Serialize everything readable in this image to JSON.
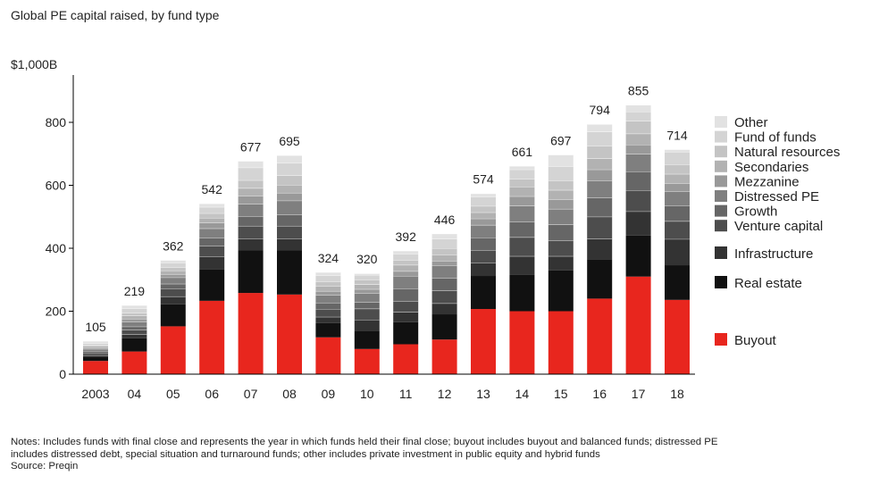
{
  "title": "Global PE capital raised, by fund type",
  "y_top_label": "$1,000B",
  "notes": [
    "Notes: Includes funds with final close and represents the year in which funds held their final close; buyout includes buyout and balanced funds; distressed PE",
    "includes distressed debt, special situation and turnaround funds; other includes private investment in public equity and hybrid funds",
    "Source: Preqin"
  ],
  "chart_data": {
    "type": "bar",
    "stacked": true,
    "title": "Global PE capital raised, by fund type",
    "ylim": [
      0,
      1000
    ],
    "yticks": [
      0,
      200,
      400,
      600,
      800
    ],
    "ytick_labels": [
      "0",
      "200",
      "400",
      "600",
      "800"
    ],
    "categories": [
      "2003",
      "04",
      "05",
      "06",
      "07",
      "08",
      "09",
      "10",
      "11",
      "12",
      "13",
      "14",
      "15",
      "16",
      "17",
      "18"
    ],
    "totals": [
      105,
      219,
      362,
      542,
      677,
      695,
      324,
      320,
      392,
      446,
      574,
      661,
      697,
      794,
      855,
      714
    ],
    "total_labels": [
      "105",
      "219",
      "362",
      "542",
      "677",
      "695",
      "324",
      "320",
      "392",
      "446",
      "574",
      "661",
      "697",
      "794",
      "855",
      "714"
    ],
    "series": [
      {
        "name": "Buyout",
        "color": "#e8261e",
        "values": [
          42,
          72,
          152,
          233,
          258,
          253,
          117,
          80,
          95,
          110,
          207,
          200,
          200,
          240,
          310,
          236
        ]
      },
      {
        "name": "Real estate",
        "color": "#111111",
        "values": [
          13,
          42,
          70,
          100,
          135,
          140,
          45,
          58,
          70,
          80,
          105,
          115,
          130,
          125,
          130,
          110
        ]
      },
      {
        "name": "Infrastructure",
        "color": "#333333",
        "values": [
          5,
          12,
          25,
          40,
          38,
          38,
          20,
          35,
          32,
          35,
          42,
          60,
          45,
          65,
          77,
          83
        ]
      },
      {
        "name": "Venture capital",
        "color": "#4d4d4d",
        "values": [
          8,
          15,
          25,
          35,
          40,
          40,
          25,
          35,
          35,
          40,
          40,
          60,
          50,
          70,
          67,
          57
        ]
      },
      {
        "name": "Growth",
        "color": "#666666",
        "values": [
          5,
          10,
          15,
          25,
          30,
          35,
          20,
          20,
          40,
          40,
          40,
          50,
          50,
          60,
          60,
          50
        ]
      },
      {
        "name": "Distressed PE",
        "color": "#7f7f7f",
        "values": [
          7,
          15,
          20,
          30,
          40,
          45,
          25,
          30,
          40,
          40,
          40,
          50,
          50,
          55,
          55,
          45
        ]
      },
      {
        "name": "Mezzanine",
        "color": "#999999",
        "values": [
          4,
          10,
          10,
          18,
          25,
          25,
          12,
          12,
          15,
          15,
          20,
          30,
          30,
          35,
          30,
          25
        ]
      },
      {
        "name": "Secondaries",
        "color": "#b2b2b2",
        "values": [
          5,
          10,
          12,
          15,
          25,
          25,
          15,
          15,
          20,
          20,
          20,
          30,
          30,
          35,
          35,
          30
        ]
      },
      {
        "name": "Natural resources",
        "color": "#c4c4c4",
        "values": [
          4,
          8,
          10,
          15,
          25,
          30,
          15,
          15,
          15,
          20,
          20,
          25,
          30,
          40,
          40,
          30
        ]
      },
      {
        "name": "Fund of funds",
        "color": "#d4d4d4",
        "values": [
          5,
          15,
          15,
          20,
          40,
          40,
          20,
          15,
          20,
          30,
          30,
          30,
          45,
          45,
          30,
          40
        ]
      },
      {
        "name": "Other",
        "color": "#e2e2e2",
        "values": [
          7,
          10,
          8,
          11,
          21,
          24,
          10,
          5,
          10,
          16,
          10,
          11,
          37,
          24,
          21,
          8
        ]
      }
    ],
    "legend": {
      "placement": "right",
      "stacked_entries": [
        "Other",
        "Fund of funds",
        "Natural resources",
        "Secondaries",
        "Mezzanine",
        "Distressed PE",
        "Growth",
        "Venture capital"
      ],
      "separate_entries": [
        "Infrastructure",
        "Real estate",
        "Buyout"
      ]
    },
    "grid": false
  }
}
